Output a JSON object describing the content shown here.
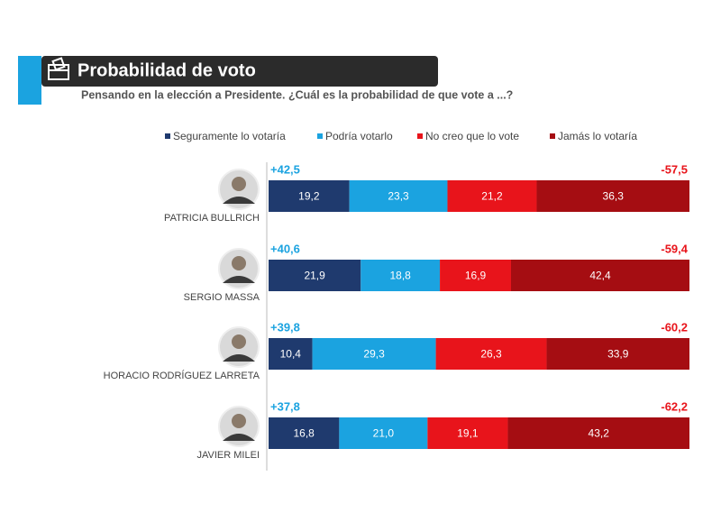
{
  "chart_data": {
    "type": "stacked-bar",
    "title": "Probabilidad de voto",
    "subtitle": "Pensando en la elección a Presidente. ¿Cuál es la probabilidad de que vote a ...?",
    "categories": [
      "PATRICIA BULLRICH",
      "SERGIO MASSA",
      "HORACIO RODRÍGUEZ LARRETA",
      "JAVIER MILEI"
    ],
    "series": [
      {
        "name": "Seguramente lo votaría",
        "color": "#1f3a6e",
        "values": [
          19.2,
          21.9,
          10.4,
          16.8
        ],
        "value_labels": [
          "19,2",
          "21,9",
          "10,4",
          "16,8"
        ]
      },
      {
        "name": "Podría votarlo",
        "color": "#1ba3e0",
        "values": [
          23.3,
          18.8,
          29.3,
          21.0
        ],
        "value_labels": [
          "23,3",
          "18,8",
          "29,3",
          "21,0"
        ]
      },
      {
        "name": "No creo que lo vote",
        "color": "#e8141b",
        "values": [
          21.2,
          16.9,
          26.3,
          19.1
        ],
        "value_labels": [
          "21,2",
          "16,9",
          "26,3",
          "19,1"
        ]
      },
      {
        "name": "Jamás lo votaría",
        "color": "#a50d12",
        "values": [
          36.3,
          42.4,
          33.9,
          43.2
        ],
        "value_labels": [
          "36,3",
          "42,4",
          "33,9",
          "43,2"
        ]
      }
    ],
    "positive_labels": [
      "+42,5",
      "+40,6",
      "+39,8",
      "+37,8"
    ],
    "negative_labels": [
      "-57,5",
      "-59,4",
      "-60,2",
      "-62,2"
    ]
  }
}
